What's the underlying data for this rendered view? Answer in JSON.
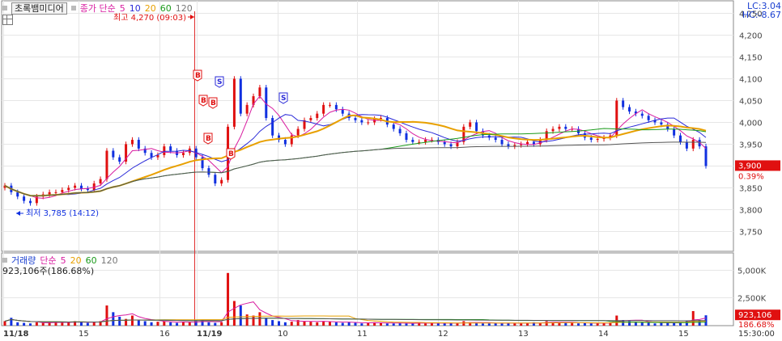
{
  "price_panel": {
    "stock_name": "초록뱀미디어",
    "indicator_label": "종가 단순",
    "ma_periods": [
      "5",
      "10",
      "20",
      "60",
      "120"
    ],
    "ma_colors": [
      "#d81ca0",
      "#2a2ad8",
      "#e8a000",
      "#1a9a1a",
      "#555555"
    ],
    "lc": "LC:3.04",
    "hc": "HC:-8.67",
    "high_label": "최고 4,270 (09:03)",
    "low_label": "최저 3,785 (14:12)",
    "current_price": "3,900",
    "current_change": "0.39%",
    "y_ticks": [
      "4,250",
      "4,200",
      "4,150",
      "4,100",
      "4,050",
      "4,000",
      "3,950",
      "3,900",
      "3,850",
      "3,800",
      "3,750"
    ]
  },
  "volume_panel": {
    "title": "거래량",
    "indicator_label": "단순",
    "ma_periods": [
      "5",
      "20",
      "60",
      "120"
    ],
    "ma_colors": [
      "#d81ca0",
      "#e8a000",
      "#1a9a1a",
      "#555555"
    ],
    "current_volume_text": "923,106주(186.68%)",
    "y_ticks": [
      "5,000K",
      "2,500K"
    ],
    "current_volume": "923,106",
    "current_volume_pct": "186.68%"
  },
  "x_axis": {
    "labels": [
      "11/18",
      "15",
      "16",
      "11/19",
      "10",
      "11",
      "12",
      "13",
      "14",
      "15"
    ],
    "time": "15:30:00"
  },
  "markers": {
    "buy": "B",
    "sell": "S"
  },
  "chart_data": {
    "type": "candlestick",
    "x_labels": [
      "11/18",
      "15",
      "16",
      "11/19",
      "10",
      "11",
      "12",
      "13",
      "14",
      "15"
    ],
    "ylim": [
      3710,
      4275
    ],
    "close_series": [
      3855,
      3840,
      3830,
      3820,
      3815,
      3830,
      3835,
      3840,
      3840,
      3845,
      3850,
      3855,
      3848,
      3845,
      3860,
      3870,
      3935,
      3920,
      3910,
      3950,
      3960,
      3940,
      3930,
      3920,
      3925,
      3945,
      3935,
      3925,
      3930,
      3940,
      3920,
      3895,
      3880,
      3860,
      3868,
      3990,
      4100,
      4020,
      4040,
      4060,
      4080,
      4010,
      3970,
      3960,
      3950,
      3970,
      3985,
      4005,
      4010,
      4020,
      4040,
      4040,
      4030,
      4020,
      4010,
      4005,
      4000,
      4000,
      4008,
      4010,
      3995,
      3985,
      3975,
      3960,
      3955,
      3955,
      3960,
      3960,
      3955,
      3950,
      3945,
      3955,
      3990,
      4000,
      3980,
      3970,
      3965,
      3960,
      3950,
      3945,
      3948,
      3950,
      3955,
      3950,
      3960,
      3980,
      3985,
      3990,
      3985,
      3985,
      3975,
      3965,
      3960,
      3962,
      3965,
      3970,
      4050,
      4035,
      4025,
      4020,
      4015,
      4005,
      4000,
      3995,
      3985,
      3970,
      3955,
      3940,
      3960,
      3945,
      3900
    ],
    "volume_K": [
      400,
      700,
      300,
      250,
      200,
      300,
      250,
      300,
      350,
      250,
      300,
      400,
      300,
      250,
      300,
      400,
      1800,
      1200,
      800,
      600,
      900,
      500,
      400,
      300,
      350,
      400,
      300,
      250,
      350,
      300,
      400,
      500,
      300,
      250,
      300,
      4700,
      2200,
      1800,
      1000,
      900,
      1200,
      700,
      500,
      400,
      300,
      350,
      500,
      400,
      350,
      300,
      400,
      350,
      300,
      250,
      300,
      250,
      200,
      250,
      300,
      250,
      200,
      200,
      250,
      200,
      200,
      250,
      200,
      250,
      200,
      200,
      250,
      200,
      400,
      300,
      250,
      200,
      200,
      250,
      200,
      250,
      200,
      200,
      250,
      300,
      250,
      400,
      300,
      250,
      300,
      250,
      200,
      250,
      200,
      200,
      250,
      300,
      900,
      500,
      400,
      350,
      300,
      250,
      200,
      250,
      300,
      250,
      300,
      400,
      1300,
      500,
      923
    ]
  }
}
